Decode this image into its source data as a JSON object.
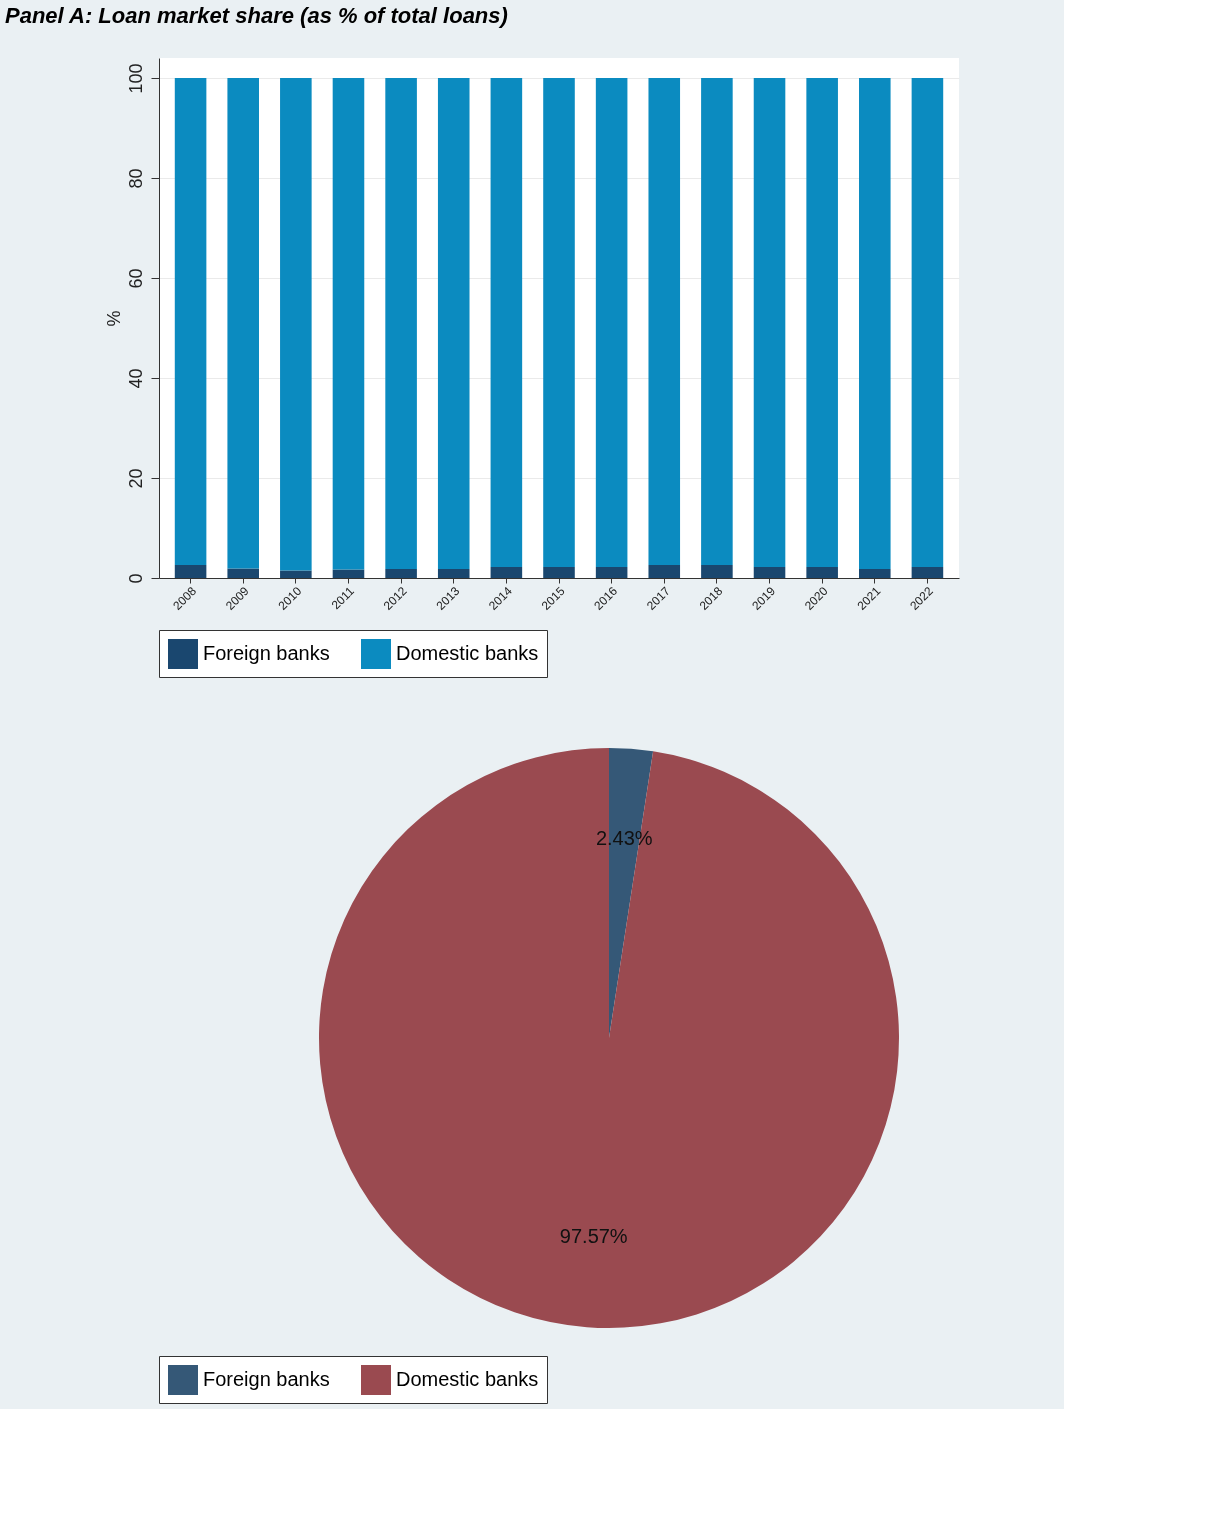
{
  "chart_data": [
    {
      "type": "bar",
      "title": "Panel A: Loan market share (as % of total loans)",
      "ylabel": "%",
      "stacked": true,
      "categories": [
        "2008",
        "2009",
        "2010",
        "2011",
        "2012",
        "2013",
        "2014",
        "2015",
        "2016",
        "2017",
        "2018",
        "2019",
        "2020",
        "2021",
        "2022"
      ],
      "series": [
        {
          "name": "Foreign banks",
          "color": "#1a476f",
          "values": [
            2.6,
            1.9,
            1.5,
            1.7,
            1.8,
            1.8,
            2.2,
            2.2,
            2.2,
            2.6,
            2.6,
            2.2,
            2.2,
            1.8,
            2.2
          ]
        },
        {
          "name": "Domestic banks",
          "color": "#0b8bc0",
          "values": [
            97.4,
            98.1,
            98.5,
            98.3,
            98.2,
            98.2,
            97.8,
            97.8,
            97.8,
            97.4,
            97.4,
            97.8,
            97.8,
            98.2,
            97.8
          ]
        }
      ],
      "ylim": [
        0,
        104
      ],
      "yticks": [
        0,
        20,
        40,
        60,
        80,
        100
      ],
      "grid": "y",
      "legend": "bottom"
    },
    {
      "type": "pie",
      "categories": [
        "Foreign banks",
        "Domestic banks"
      ],
      "values": [
        2.43,
        97.57
      ],
      "colors": [
        "#355877",
        "#9a4a50"
      ],
      "value_labels": [
        "2.43%",
        "97.57%"
      ],
      "legend": "bottom"
    }
  ]
}
